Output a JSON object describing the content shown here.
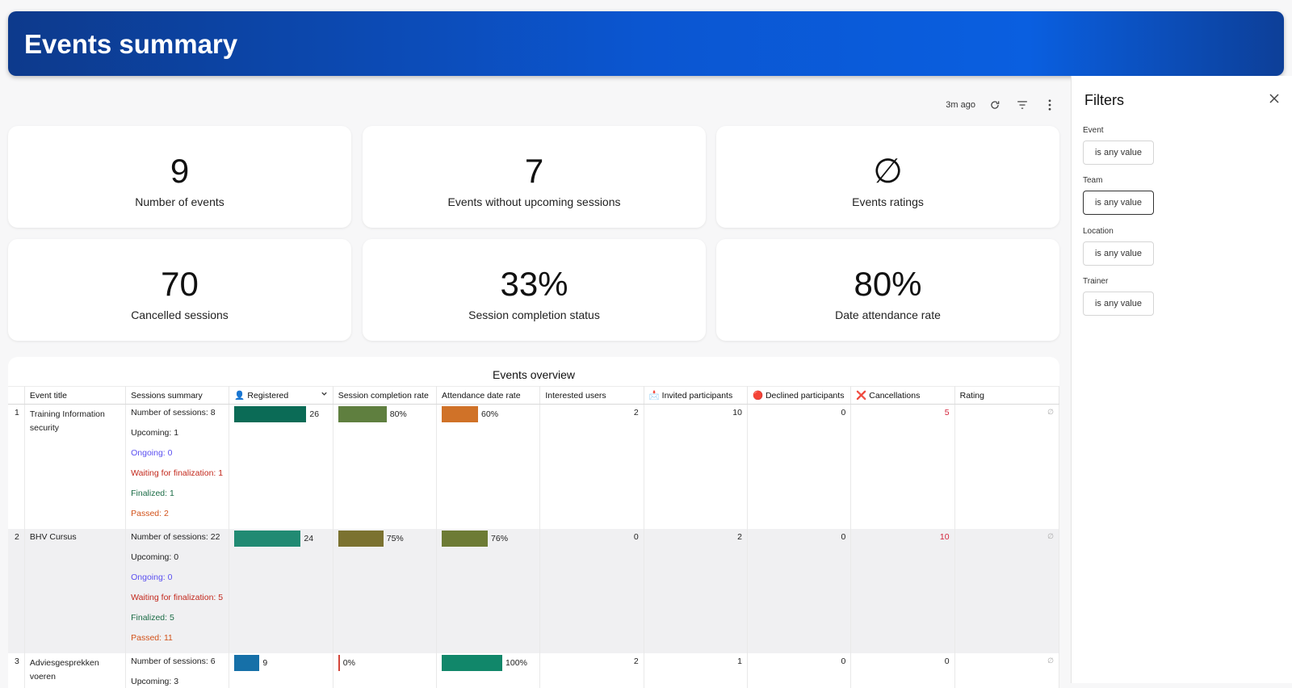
{
  "header": {
    "title": "Events summary"
  },
  "toolbar": {
    "updated": "3m ago"
  },
  "cards": [
    {
      "value": "9",
      "label": "Number of events"
    },
    {
      "value": "7",
      "label": "Events without upcoming sessions"
    },
    {
      "value": "∅",
      "label": "Events ratings"
    },
    {
      "value": "70",
      "label": "Cancelled sessions"
    },
    {
      "value": "33%",
      "label": "Session completion status"
    },
    {
      "value": "80%",
      "label": "Date attendance rate"
    }
  ],
  "table": {
    "title": "Events overview",
    "columns": {
      "event_title": "Event title",
      "sessions_summary": "Sessions summary",
      "registered": "👤 Registered",
      "completion": "Session completion rate",
      "attendance": "Attendance date rate",
      "interested": "Interested users",
      "invited": "📩 Invited participants",
      "declined": "🔴 Declined participants",
      "cancellations": "❌ Cancellations",
      "rating": "Rating"
    },
    "rows": [
      {
        "n": "1",
        "title": "Training Information security",
        "summary": {
          "sessions": "Number of sessions: 8",
          "upcoming": "Upcoming: 1",
          "ongoing": "Ongoing: 0",
          "waiting": "Waiting for finalization: 1",
          "finalized": "Finalized: 1",
          "passed": "Passed: 2"
        },
        "registered": "26",
        "completion": "80%",
        "attendance": "60%",
        "interested": "2",
        "invited": "10",
        "declined": "0",
        "cancellations": "5",
        "rating": "∅"
      },
      {
        "n": "2",
        "title": "BHV Cursus",
        "summary": {
          "sessions": "Number of sessions: 22",
          "upcoming": "Upcoming: 0",
          "ongoing": "Ongoing: 0",
          "waiting": "Waiting for finalization: 5",
          "finalized": "Finalized: 5",
          "passed": "Passed: 11"
        },
        "registered": "24",
        "completion": "75%",
        "attendance": "76%",
        "interested": "0",
        "invited": "2",
        "declined": "0",
        "cancellations": "10",
        "rating": "∅"
      },
      {
        "n": "3",
        "title": "Adviesgesprekken voeren",
        "summary": {
          "sessions": "Number of sessions: 6",
          "upcoming": "Upcoming: 3"
        },
        "registered": "9",
        "completion": "0%",
        "attendance": "100%",
        "interested": "2",
        "invited": "1",
        "declined": "0",
        "cancellations": "0",
        "rating": "∅"
      }
    ]
  },
  "filters": {
    "title": "Filters",
    "items": [
      {
        "label": "Event",
        "value": "is any value"
      },
      {
        "label": "Team",
        "value": "is any value"
      },
      {
        "label": "Location",
        "value": "is any value"
      },
      {
        "label": "Trainer",
        "value": "is any value"
      }
    ]
  },
  "colors": {
    "header_start": "#0d3a8c",
    "header_end": "#0a5fe0",
    "registered_bars": [
      "#0b6b56",
      "#218a73",
      "#1670a8"
    ],
    "completion_bars": [
      "#5f7f3f",
      "#7b7230",
      "#d4453a"
    ],
    "attendance_bars": [
      "#d07228",
      "#6d7b35",
      "#11876a"
    ],
    "cancellation_text": "#d3233a"
  }
}
